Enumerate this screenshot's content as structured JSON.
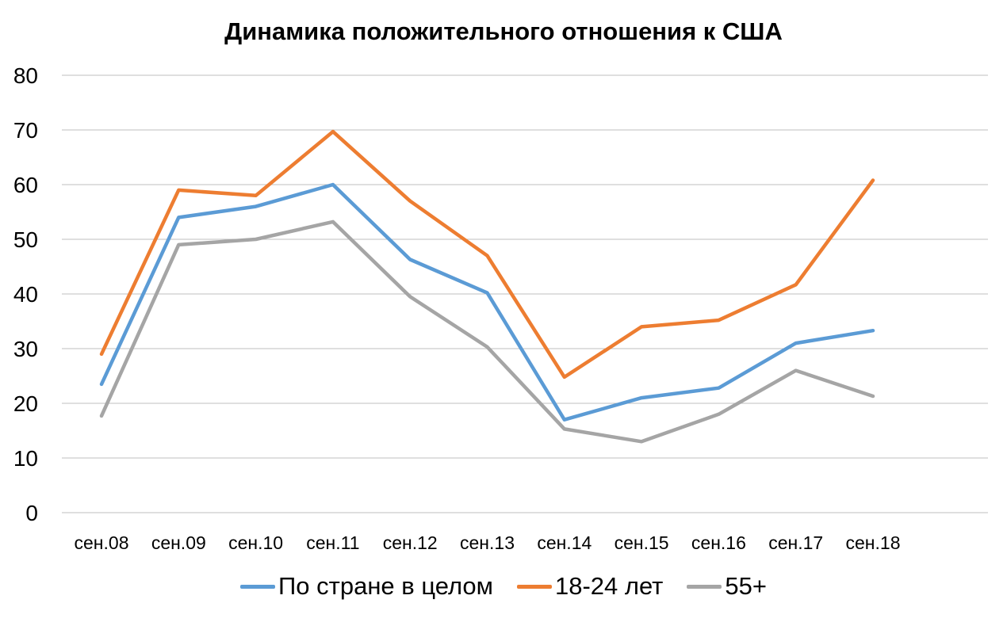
{
  "colors": {
    "background": "#ffffff",
    "gridline": "#bfbfbf",
    "series_overall": "#5b9bd5",
    "series_18_24": "#ed7d31",
    "series_55plus": "#a5a5a5"
  },
  "chart_data": {
    "type": "line",
    "title": "Динамика положительного отношения к США",
    "xlabel": "",
    "ylabel": "",
    "categories": [
      "сен.08",
      "сен.09",
      "сен.10",
      "сен.11",
      "сен.12",
      "сен.13",
      "сен.14",
      "сен.15",
      "сен.16",
      "сен.17",
      "сен.18"
    ],
    "ylim": [
      0,
      80
    ],
    "yticks": [
      "0",
      "10",
      "20",
      "30",
      "40",
      "50",
      "60",
      "70",
      "80"
    ],
    "grid": true,
    "legend_position": "bottom",
    "series": [
      {
        "name": "По стране в целом",
        "color": "#5b9bd5",
        "values": [
          23.5,
          54,
          56,
          60,
          46.3,
          40.2,
          17,
          21,
          22.8,
          31,
          33.3
        ]
      },
      {
        "name": "18-24 лет",
        "color": "#ed7d31",
        "values": [
          29,
          59,
          58,
          69.7,
          57,
          47,
          24.8,
          34,
          35.2,
          41.7,
          60.8
        ]
      },
      {
        "name": "55+",
        "color": "#a5a5a5",
        "values": [
          17.7,
          49,
          50,
          53.2,
          39.5,
          30.3,
          15.3,
          13,
          18,
          26,
          21.3
        ]
      }
    ]
  }
}
